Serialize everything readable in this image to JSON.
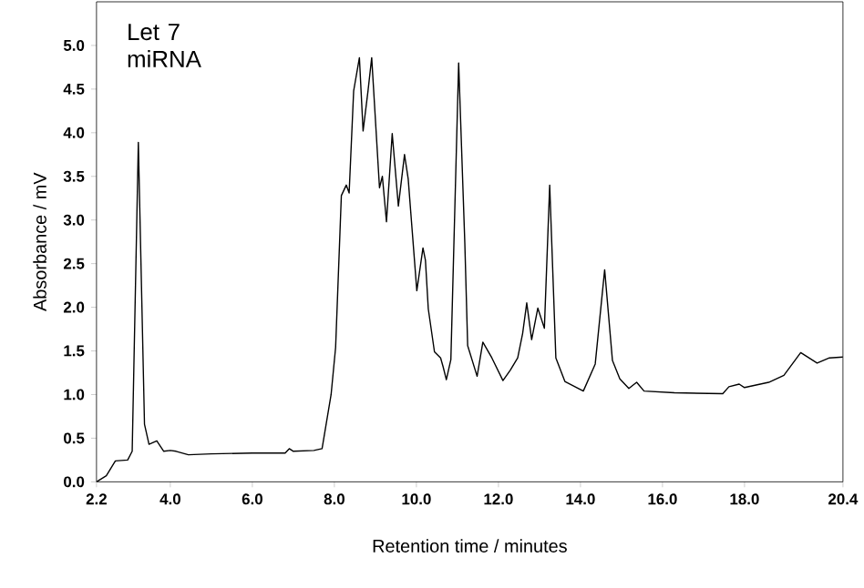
{
  "chart_data": {
    "type": "line",
    "xlabel": "Retention time / minutes",
    "ylabel": "Absorbance / mV",
    "annotations": [
      "Let 7 miRNA"
    ],
    "xlim": [
      2.2,
      20.4
    ],
    "xticks": [
      2.2,
      {
        "value": 4,
        "label": "4.0"
      },
      {
        "value": 6,
        "label": "6.0"
      },
      {
        "value": 8,
        "label": "8.0"
      },
      {
        "value": 10,
        "label": "10.0"
      },
      {
        "value": 12,
        "label": "12.0"
      },
      {
        "value": 14,
        "label": "14.0"
      },
      {
        "value": 16,
        "label": "16.0"
      },
      {
        "value": 18,
        "label": "18.0"
      },
      20.4
    ],
    "ylim": [
      0,
      5.5
    ],
    "yticks": [
      {
        "value": 0,
        "label": "0.0"
      },
      0.5,
      {
        "value": 1,
        "label": "1.0"
      },
      1.5,
      {
        "value": 2,
        "label": "2.0"
      },
      2.5,
      {
        "value": 3,
        "label": "3.0"
      },
      3.5,
      {
        "value": 4,
        "label": "4.0"
      },
      4.5,
      {
        "value": 5,
        "label": "5.0"
      }
    ],
    "grid": false,
    "marker": "none",
    "line_style": "solid",
    "series": [
      {
        "color": "#000000",
        "x": [
          2.2,
          2.44,
          2.66,
          2.96,
          3.07,
          3.22,
          3.37,
          3.48,
          3.67,
          3.84,
          4.0,
          4.14,
          4.44,
          5.0,
          6.0,
          6.8,
          6.9,
          7.0,
          7.5,
          7.7,
          7.92,
          8.03,
          8.17,
          8.29,
          8.36,
          8.47,
          8.61,
          8.7,
          8.82,
          8.91,
          9.1,
          9.17,
          9.27,
          9.41,
          9.56,
          9.71,
          9.8,
          10.01,
          10.16,
          10.22,
          10.29,
          10.44,
          10.59,
          10.65,
          10.73,
          10.84,
          11.03,
          11.18,
          11.25,
          11.48,
          11.62,
          11.84,
          12.11,
          12.29,
          12.47,
          12.59,
          12.69,
          12.81,
          12.96,
          13.12,
          13.25,
          13.4,
          13.62,
          14.07,
          14.36,
          14.59,
          14.78,
          14.96,
          15.18,
          15.37,
          15.55,
          16.29,
          17.47,
          17.62,
          17.87,
          18.0,
          18.59,
          18.96,
          19.37,
          19.77,
          20.07,
          20.4
        ],
        "values": [
          0.0,
          0.07,
          0.24,
          0.25,
          0.35,
          3.89,
          0.66,
          0.43,
          0.47,
          0.35,
          0.36,
          0.35,
          0.31,
          0.32,
          0.33,
          0.33,
          0.38,
          0.35,
          0.36,
          0.38,
          1.0,
          1.54,
          3.28,
          3.4,
          3.31,
          4.48,
          4.86,
          4.02,
          4.48,
          4.86,
          3.37,
          3.5,
          2.98,
          3.99,
          3.16,
          3.75,
          3.47,
          2.19,
          2.68,
          2.54,
          1.98,
          1.49,
          1.42,
          1.32,
          1.17,
          1.4,
          4.8,
          2.74,
          1.56,
          1.21,
          1.6,
          1.42,
          1.16,
          1.28,
          1.42,
          1.7,
          2.05,
          1.63,
          1.99,
          1.76,
          3.4,
          1.42,
          1.15,
          1.04,
          1.35,
          2.43,
          1.39,
          1.18,
          1.07,
          1.14,
          1.04,
          1.02,
          1.01,
          1.09,
          1.12,
          1.08,
          1.14,
          1.22,
          1.48,
          1.36,
          1.42,
          1.43
        ]
      }
    ]
  }
}
